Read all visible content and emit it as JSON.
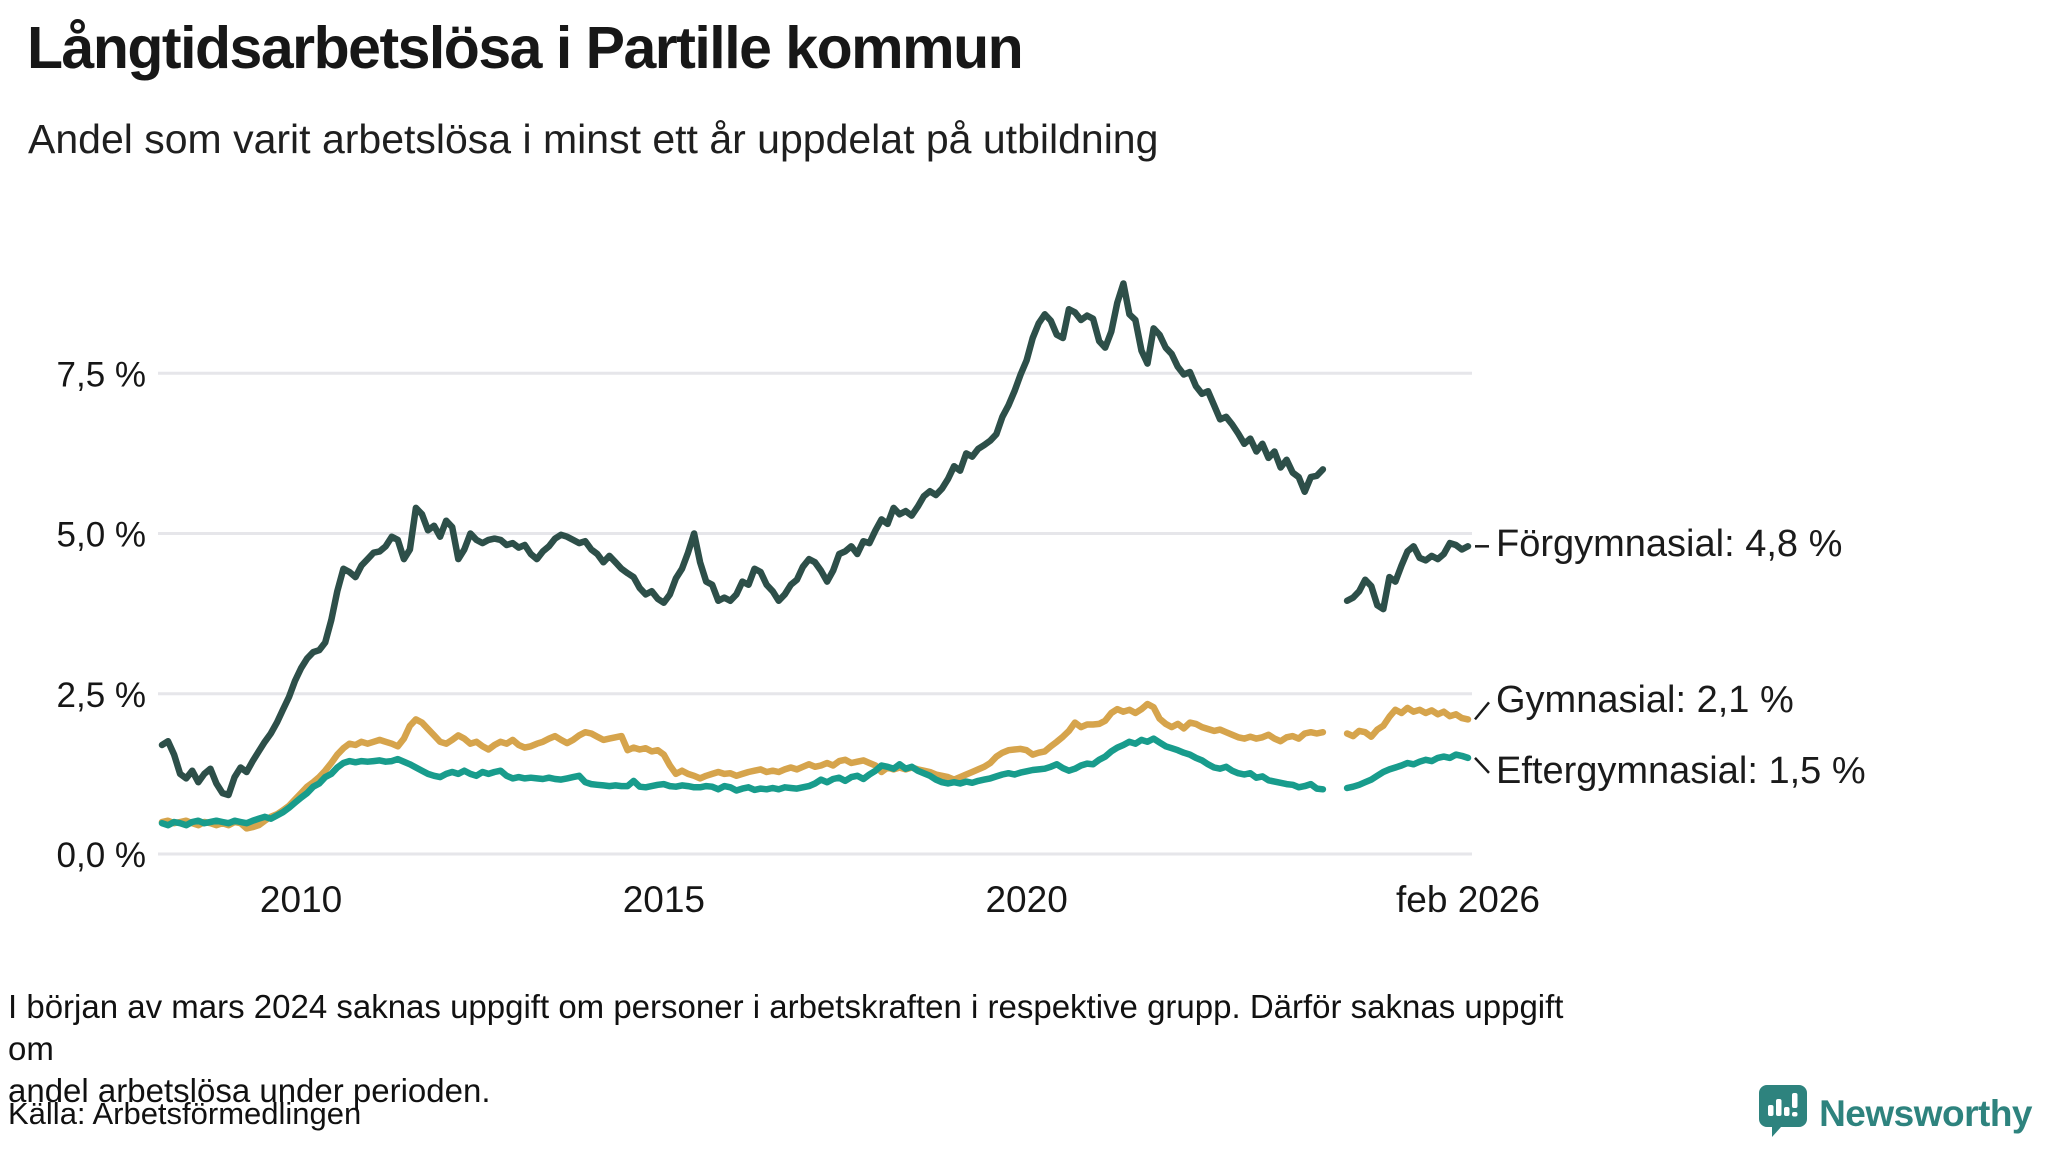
{
  "title": "Långtidsarbetslösa i Partille kommun",
  "subtitle": "Andel som varit arbetslösa i minst ett år uppdelat på utbildning",
  "footnote": {
    "line1": "I början av mars 2024 saknas uppgift om personer i arbetskraften i respektive grupp. Därför saknas uppgift om",
    "line2": "andel arbetslösa under perioden."
  },
  "source": "Källa: Arbetsförmedlingen",
  "brand": {
    "name": "Newsworthy",
    "color": "#2e837e"
  },
  "chart_data": {
    "type": "line",
    "title": "Långtidsarbetslösa i Partille kommun",
    "subtitle": "Andel som varit arbetslösa i minst ett år uppdelat på utbildning",
    "x_unit": "decimal_year_monthly",
    "x_start": 2008.083,
    "x_step": 0.083333,
    "x_range": [
      2008.083,
      2026.083
    ],
    "ylim": [
      0,
      9.3
    ],
    "grid": "horizontal",
    "legend_position": "right-end-labels",
    "gridline_color": "#e6e6ea",
    "y_ticks": [
      {
        "value": 0.0,
        "label": "0,0 %"
      },
      {
        "value": 2.5,
        "label": "2,5 %"
      },
      {
        "value": 5.0,
        "label": "5,0 %"
      },
      {
        "value": 7.5,
        "label": "7,5 %"
      }
    ],
    "x_ticks": [
      {
        "value": 2010,
        "label": "2010"
      },
      {
        "value": 2015,
        "label": "2015"
      },
      {
        "value": 2020,
        "label": "2020"
      },
      {
        "value": 2026.083,
        "label": "feb 2026"
      }
    ],
    "series": [
      {
        "name": "Förgymnasial",
        "end_label": "Förgymnasial: 4,8 %",
        "end_value_label": "4,8 %",
        "color": "#2d4f49",
        "label_offset_y": 0,
        "values": [
          1.7,
          1.76,
          1.55,
          1.25,
          1.18,
          1.3,
          1.12,
          1.25,
          1.33,
          1.1,
          0.95,
          0.92,
          1.2,
          1.35,
          1.28,
          1.45,
          1.6,
          1.75,
          1.88,
          2.05,
          2.25,
          2.45,
          2.7,
          2.9,
          3.05,
          3.15,
          3.18,
          3.3,
          3.65,
          4.1,
          4.45,
          4.4,
          4.32,
          4.5,
          4.6,
          4.7,
          4.72,
          4.8,
          4.95,
          4.9,
          4.6,
          4.75,
          5.4,
          5.3,
          5.05,
          5.12,
          4.95,
          5.2,
          5.1,
          4.6,
          4.75,
          5.0,
          4.9,
          4.85,
          4.9,
          4.92,
          4.9,
          4.82,
          4.85,
          4.78,
          4.82,
          4.68,
          4.6,
          4.72,
          4.8,
          4.92,
          4.98,
          4.95,
          4.9,
          4.85,
          4.88,
          4.75,
          4.68,
          4.55,
          4.65,
          4.55,
          4.45,
          4.38,
          4.32,
          4.15,
          4.05,
          4.1,
          3.98,
          3.92,
          4.05,
          4.3,
          4.45,
          4.7,
          5.0,
          4.55,
          4.25,
          4.2,
          3.95,
          4.0,
          3.95,
          4.05,
          4.25,
          4.2,
          4.45,
          4.4,
          4.2,
          4.1,
          3.95,
          4.05,
          4.2,
          4.28,
          4.48,
          4.6,
          4.55,
          4.42,
          4.25,
          4.42,
          4.68,
          4.72,
          4.8,
          4.68,
          4.88,
          4.85,
          5.05,
          5.22,
          5.15,
          5.4,
          5.3,
          5.35,
          5.28,
          5.42,
          5.58,
          5.66,
          5.6,
          5.7,
          5.85,
          6.05,
          5.98,
          6.25,
          6.2,
          6.32,
          6.38,
          6.45,
          6.55,
          6.82,
          7.0,
          7.22,
          7.48,
          7.7,
          8.05,
          8.28,
          8.42,
          8.32,
          8.1,
          8.05,
          8.5,
          8.45,
          8.33,
          8.4,
          8.35,
          8.0,
          7.9,
          8.15,
          8.6,
          8.9,
          8.42,
          8.33,
          7.85,
          7.65,
          8.2,
          8.1,
          7.9,
          7.8,
          7.6,
          7.48,
          7.52,
          7.3,
          7.18,
          7.22,
          7.0,
          6.78,
          6.82,
          6.7,
          6.56,
          6.4,
          6.48,
          6.28,
          6.4,
          6.18,
          6.28,
          6.03,
          6.15,
          5.95,
          5.88,
          5.65,
          5.88,
          5.9,
          6.0,
          null,
          null,
          null,
          3.95,
          4.0,
          4.1,
          4.28,
          4.18,
          3.88,
          3.82,
          4.32,
          4.25,
          4.5,
          4.72,
          4.8,
          4.62,
          4.58,
          4.65,
          4.6,
          4.68,
          4.85,
          4.82,
          4.75,
          4.8
        ]
      },
      {
        "name": "Gymnasial",
        "end_label": "Gymnasial: 2,1 %",
        "end_value_label": "2,1 %",
        "color": "#d6a44c",
        "label_offset_y": -17,
        "values": [
          0.5,
          0.52,
          0.48,
          0.5,
          0.52,
          0.48,
          0.45,
          0.5,
          0.48,
          0.45,
          0.48,
          0.45,
          0.5,
          0.48,
          0.4,
          0.42,
          0.45,
          0.52,
          0.58,
          0.62,
          0.68,
          0.75,
          0.85,
          0.95,
          1.05,
          1.12,
          1.2,
          1.3,
          1.42,
          1.55,
          1.65,
          1.72,
          1.7,
          1.75,
          1.72,
          1.75,
          1.78,
          1.75,
          1.72,
          1.68,
          1.8,
          2.0,
          2.1,
          2.05,
          1.95,
          1.85,
          1.75,
          1.72,
          1.78,
          1.85,
          1.8,
          1.72,
          1.75,
          1.68,
          1.63,
          1.7,
          1.75,
          1.72,
          1.78,
          1.7,
          1.66,
          1.68,
          1.72,
          1.75,
          1.8,
          1.84,
          1.78,
          1.73,
          1.78,
          1.85,
          1.9,
          1.88,
          1.83,
          1.78,
          1.8,
          1.82,
          1.84,
          1.62,
          1.66,
          1.63,
          1.65,
          1.6,
          1.62,
          1.55,
          1.38,
          1.25,
          1.3,
          1.25,
          1.22,
          1.18,
          1.22,
          1.25,
          1.28,
          1.25,
          1.26,
          1.22,
          1.25,
          1.28,
          1.3,
          1.32,
          1.28,
          1.3,
          1.28,
          1.32,
          1.35,
          1.32,
          1.36,
          1.4,
          1.36,
          1.38,
          1.42,
          1.38,
          1.45,
          1.47,
          1.42,
          1.44,
          1.46,
          1.42,
          1.38,
          1.28,
          1.35,
          1.32,
          1.35,
          1.32,
          1.35,
          1.32,
          1.3,
          1.28,
          1.24,
          1.22,
          1.2,
          1.16,
          1.2,
          1.24,
          1.28,
          1.32,
          1.36,
          1.42,
          1.52,
          1.58,
          1.62,
          1.63,
          1.64,
          1.62,
          1.55,
          1.58,
          1.6,
          1.68,
          1.75,
          1.83,
          1.92,
          2.05,
          1.98,
          2.02,
          2.02,
          2.03,
          2.08,
          2.2,
          2.26,
          2.22,
          2.25,
          2.2,
          2.26,
          2.34,
          2.29,
          2.11,
          2.03,
          1.98,
          2.03,
          1.96,
          2.05,
          2.03,
          1.98,
          1.95,
          1.92,
          1.94,
          1.9,
          1.86,
          1.82,
          1.8,
          1.83,
          1.8,
          1.82,
          1.86,
          1.8,
          1.76,
          1.82,
          1.84,
          1.8,
          1.88,
          1.9,
          1.88,
          1.9,
          null,
          null,
          null,
          1.88,
          1.84,
          1.92,
          1.9,
          1.83,
          1.94,
          2.0,
          2.14,
          2.25,
          2.2,
          2.28,
          2.22,
          2.25,
          2.2,
          2.24,
          2.18,
          2.22,
          2.15,
          2.18,
          2.12,
          2.1
        ]
      },
      {
        "name": "Eftergymnasial",
        "end_label": "Eftergymnasial: 1,5 %",
        "end_value_label": "1,5 %",
        "color": "#189c8c",
        "label_offset_y": 15,
        "values": [
          0.48,
          0.45,
          0.5,
          0.48,
          0.45,
          0.5,
          0.52,
          0.48,
          0.5,
          0.52,
          0.5,
          0.48,
          0.52,
          0.5,
          0.48,
          0.52,
          0.55,
          0.58,
          0.55,
          0.6,
          0.65,
          0.72,
          0.8,
          0.88,
          0.95,
          1.05,
          1.1,
          1.2,
          1.25,
          1.35,
          1.42,
          1.45,
          1.43,
          1.45,
          1.44,
          1.45,
          1.46,
          1.44,
          1.45,
          1.48,
          1.44,
          1.4,
          1.35,
          1.3,
          1.25,
          1.22,
          1.2,
          1.25,
          1.28,
          1.25,
          1.3,
          1.25,
          1.22,
          1.28,
          1.25,
          1.28,
          1.3,
          1.22,
          1.18,
          1.2,
          1.18,
          1.19,
          1.18,
          1.17,
          1.19,
          1.17,
          1.16,
          1.18,
          1.2,
          1.22,
          1.12,
          1.09,
          1.08,
          1.07,
          1.06,
          1.07,
          1.06,
          1.06,
          1.14,
          1.05,
          1.04,
          1.06,
          1.08,
          1.09,
          1.06,
          1.05,
          1.07,
          1.06,
          1.04,
          1.04,
          1.06,
          1.05,
          1.01,
          1.06,
          1.04,
          0.99,
          1.02,
          1.04,
          1.0,
          1.02,
          1.01,
          1.03,
          1.01,
          1.04,
          1.03,
          1.02,
          1.04,
          1.06,
          1.1,
          1.16,
          1.12,
          1.17,
          1.19,
          1.14,
          1.2,
          1.22,
          1.17,
          1.24,
          1.3,
          1.38,
          1.36,
          1.33,
          1.4,
          1.33,
          1.36,
          1.3,
          1.26,
          1.22,
          1.16,
          1.12,
          1.1,
          1.12,
          1.1,
          1.13,
          1.11,
          1.14,
          1.16,
          1.18,
          1.21,
          1.24,
          1.26,
          1.24,
          1.27,
          1.29,
          1.31,
          1.32,
          1.33,
          1.36,
          1.4,
          1.34,
          1.3,
          1.33,
          1.38,
          1.41,
          1.4,
          1.47,
          1.52,
          1.6,
          1.66,
          1.7,
          1.75,
          1.72,
          1.78,
          1.75,
          1.8,
          1.74,
          1.68,
          1.65,
          1.62,
          1.58,
          1.55,
          1.5,
          1.46,
          1.4,
          1.35,
          1.33,
          1.36,
          1.3,
          1.26,
          1.24,
          1.26,
          1.19,
          1.21,
          1.15,
          1.13,
          1.11,
          1.09,
          1.08,
          1.04,
          1.06,
          1.09,
          1.02,
          1.01,
          null,
          null,
          null,
          1.03,
          1.05,
          1.08,
          1.12,
          1.16,
          1.22,
          1.28,
          1.32,
          1.35,
          1.38,
          1.42,
          1.4,
          1.44,
          1.47,
          1.45,
          1.5,
          1.52,
          1.5,
          1.55,
          1.53,
          1.5
        ]
      }
    ]
  }
}
